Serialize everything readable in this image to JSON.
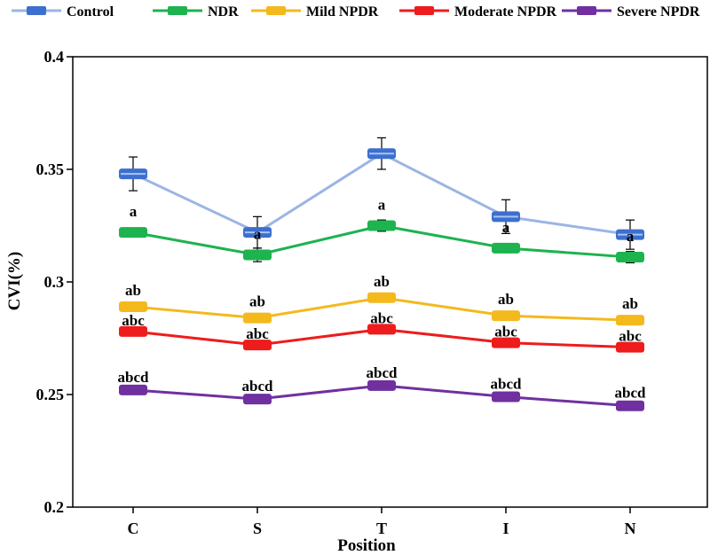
{
  "chart_data": {
    "type": "line",
    "title": "",
    "xlabel": "Position",
    "ylabel": "CVI(%)",
    "categories": [
      "C",
      "S",
      "T",
      "I",
      "N"
    ],
    "ylim": [
      0.2,
      0.4
    ],
    "yticks": [
      0.2,
      0.25,
      0.3,
      0.35,
      0.4
    ],
    "ytick_labels": [
      "0.2",
      "0.25",
      "0.3",
      "0.35",
      "0.4"
    ],
    "grid": false,
    "legend_position": "top",
    "series": [
      {
        "name": "Control",
        "line_color": "#9bb5e4",
        "marker_color": "#3d6fcf",
        "values": [
          0.348,
          0.322,
          0.357,
          0.329,
          0.321
        ],
        "errors": [
          0.0075,
          0.007,
          0.007,
          0.0075,
          0.0065
        ],
        "labels": [
          "",
          "",
          "",
          "",
          ""
        ]
      },
      {
        "name": "NDR",
        "line_color": "#1db34f",
        "marker_color": "#1db34f",
        "values": [
          0.322,
          0.312,
          0.325,
          0.315,
          0.311
        ],
        "errors": [
          0.0015,
          0.003,
          0.0025,
          0.002,
          0.0025
        ],
        "labels": [
          "a",
          "a",
          "a",
          "a",
          "a"
        ]
      },
      {
        "name": "Mild NPDR",
        "line_color": "#f4b91c",
        "marker_color": "#f4b91c",
        "values": [
          0.289,
          0.284,
          0.293,
          0.285,
          0.283
        ],
        "errors": [
          0.001,
          0.002,
          0.001,
          0.001,
          0.001
        ],
        "labels": [
          "ab",
          "ab",
          "ab",
          "ab",
          "ab"
        ]
      },
      {
        "name": "Moderate NPDR",
        "line_color": "#ee1c1c",
        "marker_color": "#ee1c1c",
        "values": [
          0.278,
          0.272,
          0.279,
          0.273,
          0.271
        ],
        "errors": [
          0.001,
          0.001,
          0.001,
          0.001,
          0.001
        ],
        "labels": [
          "abc",
          "abc",
          "abc",
          "abc",
          "abc"
        ]
      },
      {
        "name": "Severe NPDR",
        "line_color": "#7030a0",
        "marker_color": "#7030a0",
        "values": [
          0.252,
          0.248,
          0.254,
          0.249,
          0.245
        ],
        "errors": [
          0.001,
          0.001,
          0.001,
          0.001,
          0.001
        ],
        "labels": [
          "abcd",
          "abcd",
          "abcd",
          "abcd",
          "abcd"
        ]
      }
    ]
  }
}
